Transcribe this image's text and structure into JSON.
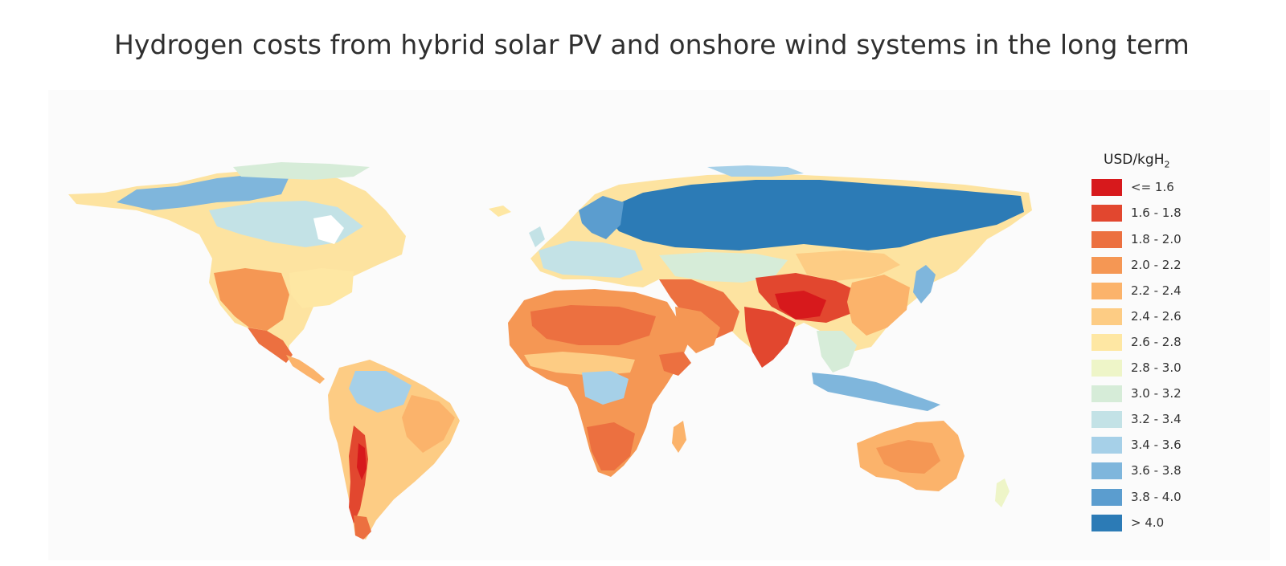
{
  "title": "Hydrogen costs from hybrid solar PV and onshore wind systems in the long term",
  "legend": {
    "title_main": "USD/kgH",
    "title_sub": "2",
    "items": [
      {
        "label": "<= 1.6",
        "color": "#d7191c"
      },
      {
        "label": "1.6 - 1.8",
        "color": "#e2472f"
      },
      {
        "label": "1.8 - 2.0",
        "color": "#ec7040"
      },
      {
        "label": "2.0 - 2.2",
        "color": "#f59754"
      },
      {
        "label": "2.2 - 2.4",
        "color": "#fbb36b"
      },
      {
        "label": "2.4 - 2.6",
        "color": "#fdcc84"
      },
      {
        "label": "2.6 - 2.8",
        "color": "#fee7a3"
      },
      {
        "label": "2.8 - 3.0",
        "color": "#eef5c8"
      },
      {
        "label": "3.0 - 3.2",
        "color": "#d6ecd8"
      },
      {
        "label": "3.2 - 3.4",
        "color": "#c3e2e6"
      },
      {
        "label": "3.4 - 3.6",
        "color": "#a6d0e8"
      },
      {
        "label": "3.6 - 3.8",
        "color": "#7fb6dc"
      },
      {
        "label": "3.8 - 4.0",
        "color": "#5b9dcf"
      },
      {
        "label": "> 4.0",
        "color": "#2c7bb6"
      }
    ]
  }
}
